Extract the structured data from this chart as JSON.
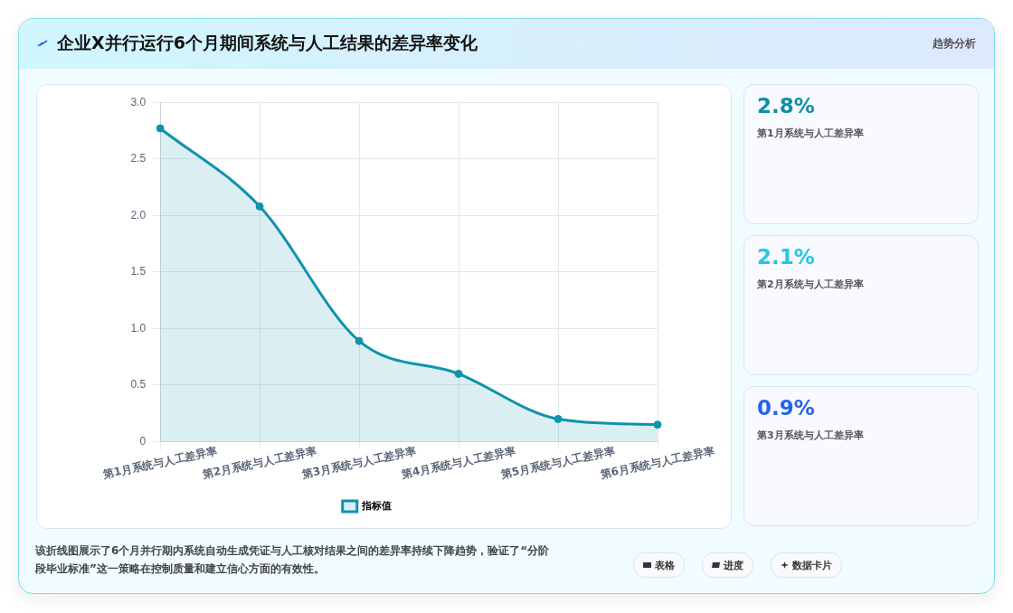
{
  "chart_data": [
    {
      "type": "area",
      "title": "企业X并行运行6个月期间系统与人工结果的差异率变化",
      "categories": [
        "第1月系统与人工差异率",
        "第2月系统与人工差异率",
        "第3月系统与人工差异率",
        "第4月系统与人工差异率",
        "第5月系统与人工差异率",
        "第6月系统与人工差异率"
      ],
      "series": [
        {
          "name": "指标值",
          "color": "#0f93ad",
          "values": [
            2.77,
            2.08,
            0.89,
            0.6,
            0.2,
            0.15
          ]
        }
      ],
      "ylim": [
        0,
        3
      ],
      "yticks": [
        {
          "value": 0,
          "label": "0"
        },
        {
          "value": 0.5,
          "label": "0.5"
        },
        {
          "value": 1,
          "label": "1.0"
        },
        {
          "value": 1.5,
          "label": "1.5"
        },
        {
          "value": 2,
          "label": "2.0"
        },
        {
          "value": 2.5,
          "label": "2.5"
        },
        {
          "value": 3,
          "label": "3.0"
        }
      ],
      "grid": true,
      "legend": "bottom",
      "marker": "circle",
      "line_style": "solid",
      "annotations": [
        "趋势分析",
        "该折线图展示了6个月并行期内系统自动生成凭证与人工核对结果之间的差异率持续下降趋势，验证了“分阶段毕业标准”这一策略在控制质量和建立信心方面的有效性。",
        "表格",
        "进度",
        "数据卡片"
      ]
    },
    {
      "type": "other",
      "annotations": [
        "2.8%",
        "第1月系统与人工差异率",
        "2.1%",
        "第2月系统与人工差异率",
        "0.9%",
        "第3月系统与人工差异率"
      ]
    }
  ]
}
